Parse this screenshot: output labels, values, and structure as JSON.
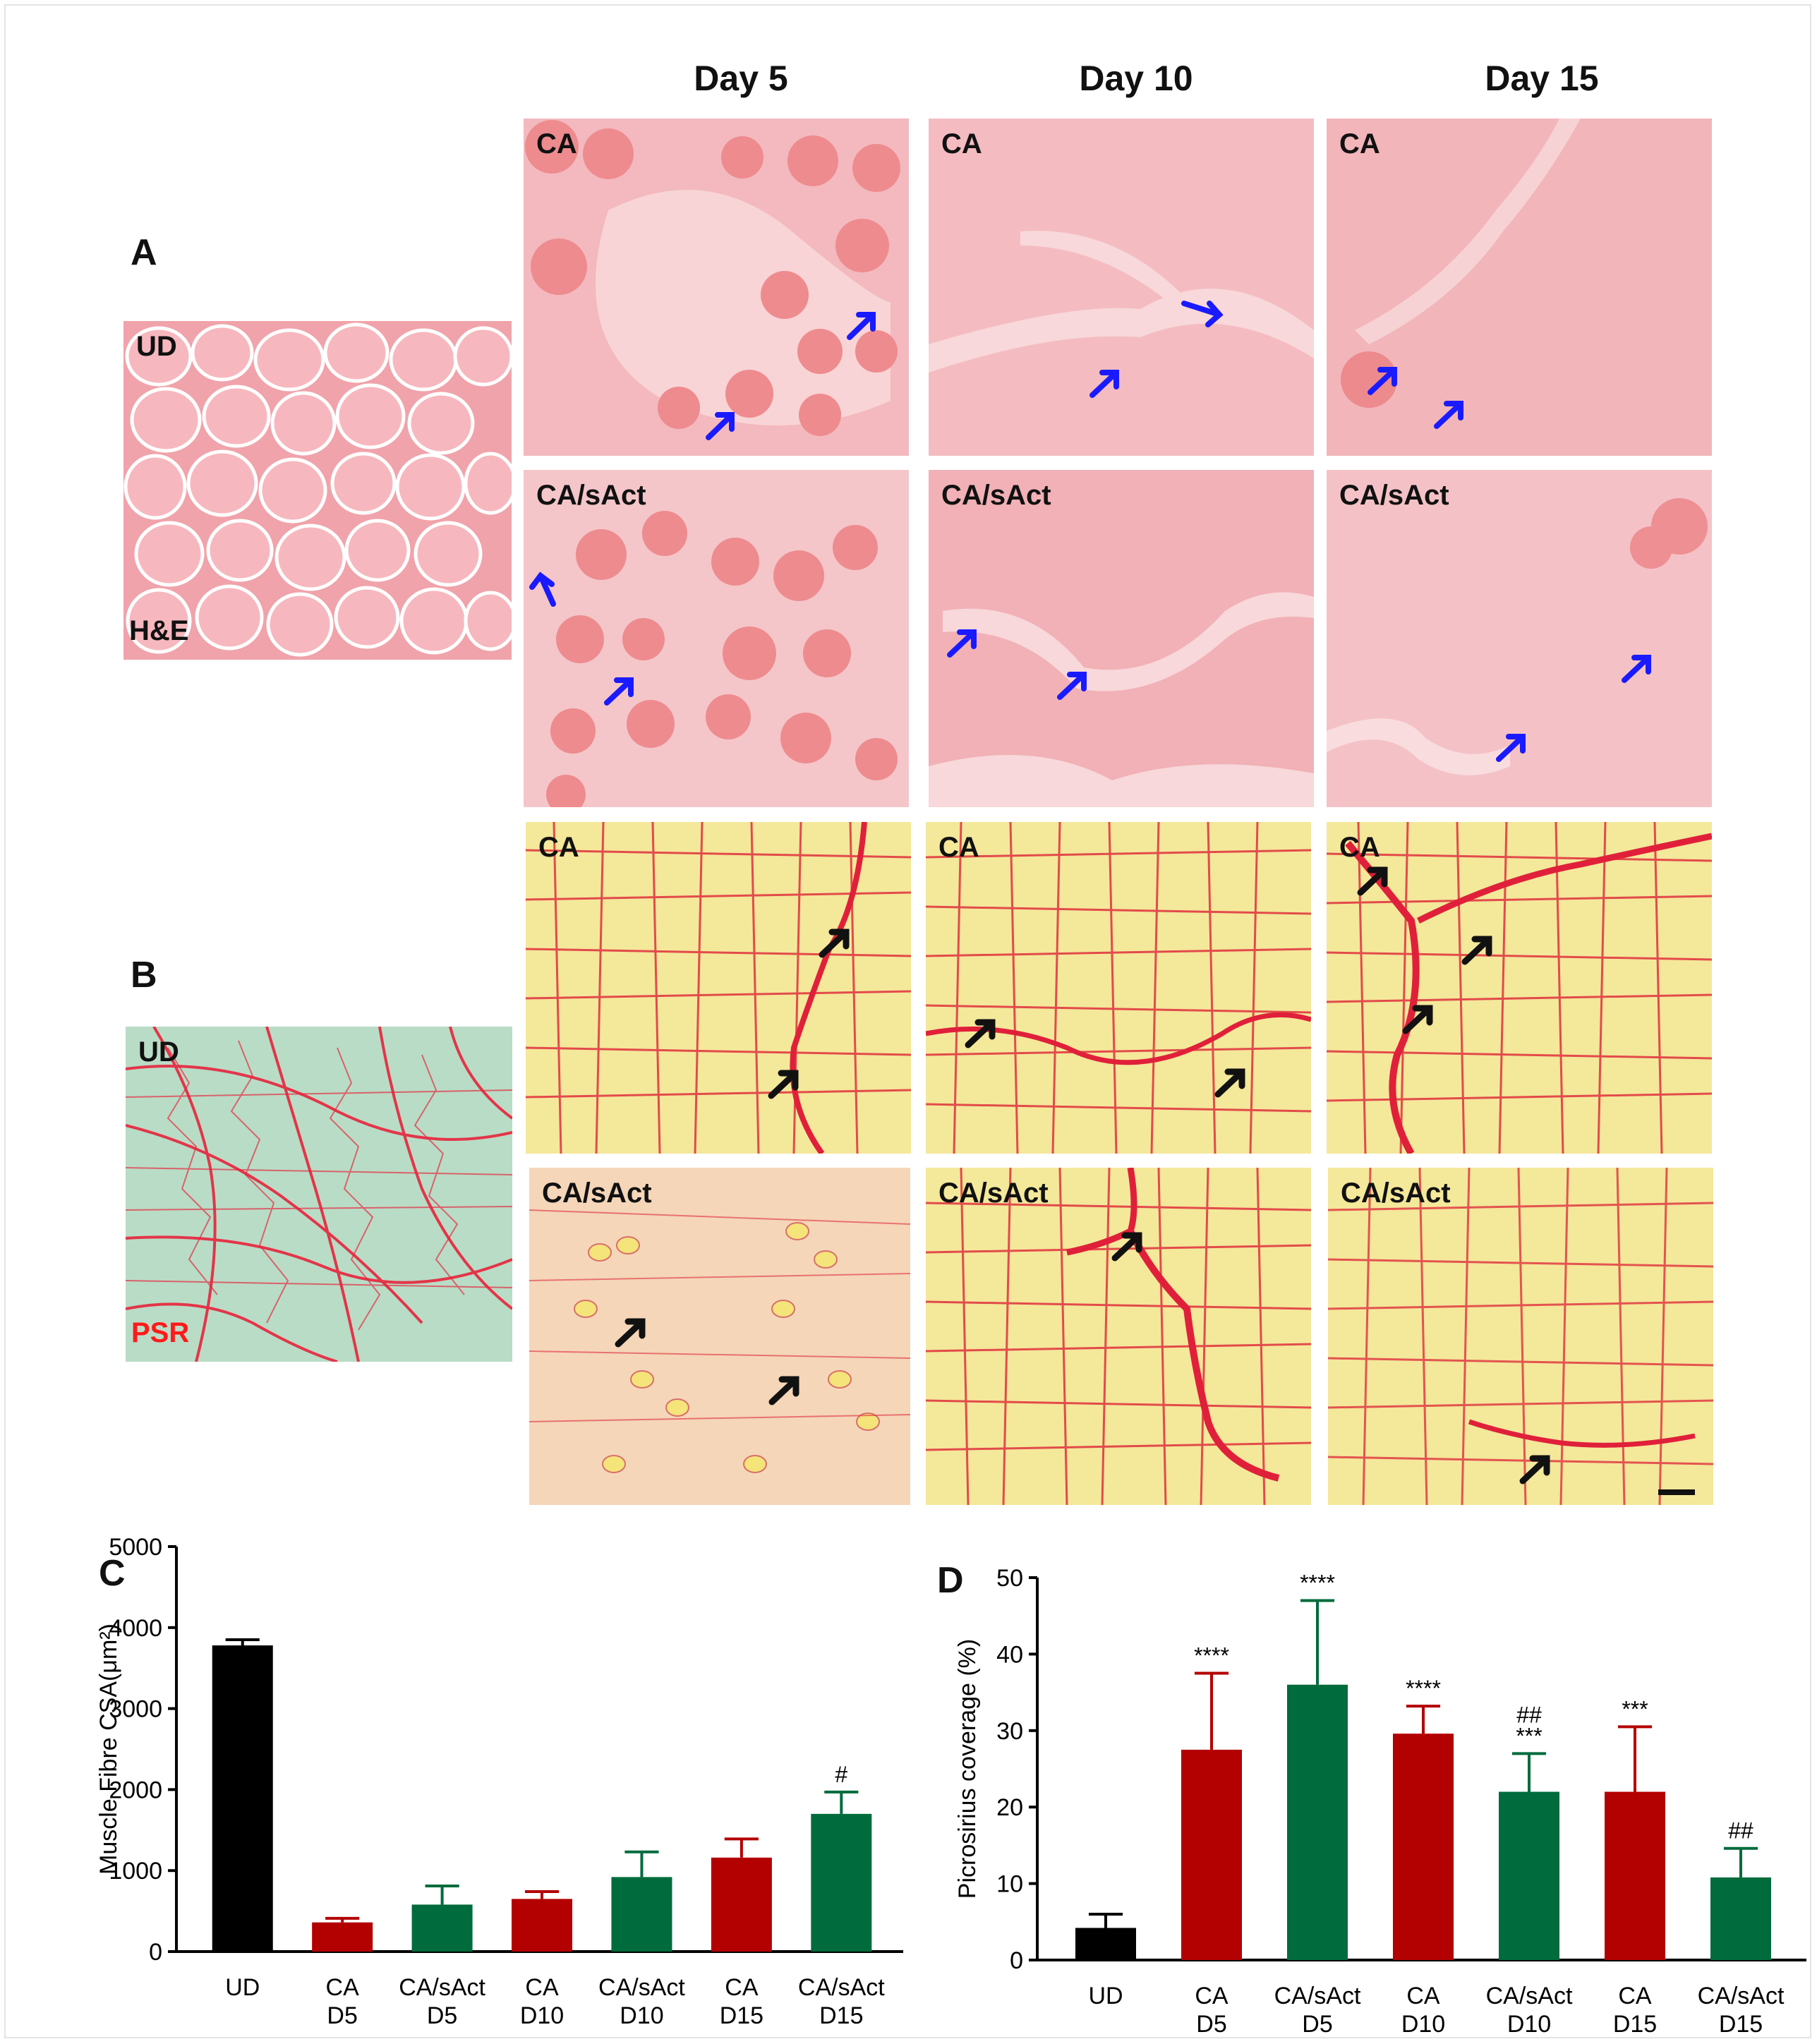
{
  "columns": [
    "Day 5",
    "Day 10",
    "Day 15"
  ],
  "panels": {
    "a_letter": "A",
    "b_letter": "B",
    "c_letter": "C",
    "d_letter": "D"
  },
  "micrographs": {
    "he_ud_top": "UD",
    "he_ud_bottom": "H&E",
    "psr_ud_top": "UD",
    "psr_ud_bottom": "PSR",
    "ca": "CA",
    "ca_sact": "CA/sAct"
  },
  "colors": {
    "ud": "#000000",
    "ca": "#b30000",
    "ca_sact": "#006b3c",
    "he_arrow": "#1a1aff",
    "psr_arrow": "#111111"
  },
  "chart_data": [
    {
      "type": "bar",
      "panel": "C",
      "ylabel": "Muscle Fibre CSA(μm²)",
      "ylim": [
        0,
        5000
      ],
      "yticks": [
        "0",
        "1000",
        "2000",
        "3000",
        "4000",
        "5000"
      ],
      "categories": [
        [
          "UD"
        ],
        [
          "CA",
          "D5"
        ],
        [
          "CA/sAct",
          "D5"
        ],
        [
          "CA",
          "D10"
        ],
        [
          "CA/sAct",
          "D10"
        ],
        [
          "CA",
          "D15"
        ],
        [
          "CA/sAct",
          "D15"
        ]
      ],
      "values": [
        3780,
        360,
        580,
        650,
        920,
        1160,
        1700
      ],
      "errors": [
        70,
        50,
        230,
        90,
        310,
        230,
        270
      ],
      "annotations": [
        "",
        "",
        "",
        "",
        "",
        "",
        "#"
      ],
      "bar_colors": [
        "#000000",
        "#b30000",
        "#006b3c",
        "#b30000",
        "#006b3c",
        "#b30000",
        "#006b3c"
      ]
    },
    {
      "type": "bar",
      "panel": "D",
      "ylabel": "Picrosirius coverage (%)",
      "ylim": [
        0,
        50
      ],
      "yticks": [
        "0",
        "10",
        "20",
        "30",
        "40",
        "50"
      ],
      "categories": [
        [
          "UD"
        ],
        [
          "CA",
          "D5"
        ],
        [
          "CA/sAct",
          "D5"
        ],
        [
          "CA",
          "D10"
        ],
        [
          "CA/sAct",
          "D10"
        ],
        [
          "CA",
          "D15"
        ],
        [
          "CA/sAct",
          "D15"
        ]
      ],
      "values": [
        4.2,
        27.5,
        36,
        29.6,
        22,
        22,
        10.8
      ],
      "errors": [
        1.8,
        10,
        11,
        3.6,
        5,
        8.5,
        3.8
      ],
      "annotations": [
        [
          ""
        ],
        [
          "****"
        ],
        [
          "****"
        ],
        [
          "****"
        ],
        [
          "##",
          "***"
        ],
        [
          "***"
        ],
        [
          "##"
        ]
      ],
      "bar_colors": [
        "#000000",
        "#b30000",
        "#006b3c",
        "#b30000",
        "#006b3c",
        "#b30000",
        "#006b3c"
      ]
    }
  ]
}
